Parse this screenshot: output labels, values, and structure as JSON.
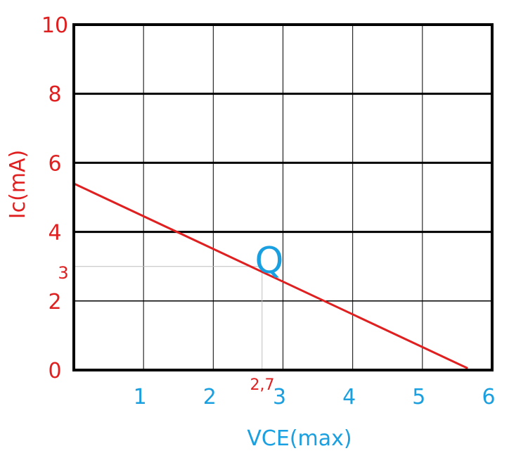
{
  "chart_data": {
    "type": "line",
    "title": "",
    "xlabel": "VCE(max)",
    "ylabel": "Ic(mA)",
    "xlim": [
      0,
      6
    ],
    "ylim": [
      0,
      10
    ],
    "x_ticks": [
      "1",
      "2",
      "3",
      "4",
      "5",
      "6"
    ],
    "y_ticks": [
      "0",
      "2",
      "4",
      "6",
      "8",
      "10"
    ],
    "grid": true,
    "series": [
      {
        "x": [
          0,
          5.65
        ],
        "y": [
          5.4,
          0.05
        ]
      }
    ],
    "q_point": {
      "label": "Q",
      "x": 2.7,
      "y": 3,
      "x_label": "2,7",
      "y_label": "3"
    }
  },
  "colors": {
    "y_axis_text": "#e02020",
    "x_axis_text": "#1aa0e0",
    "load_line": "#e02020",
    "q_label": "#1aa0e0",
    "grid": "#000000",
    "guide": "#bdbdbd"
  }
}
